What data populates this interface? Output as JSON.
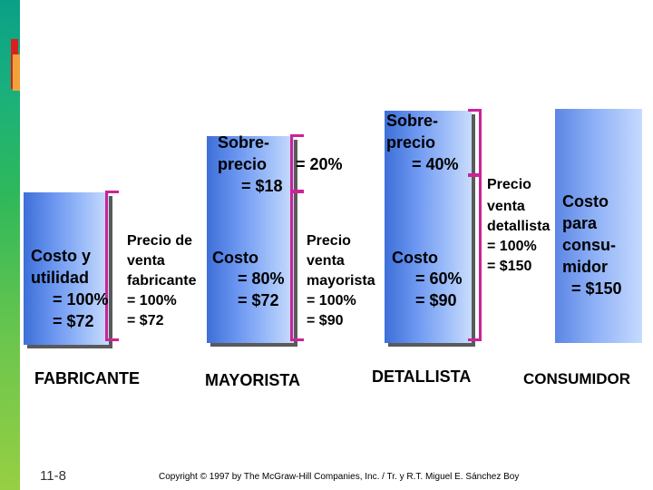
{
  "slide_number": "11-8",
  "copyright": "Copyright © 1997 by The McGraw-Hill Companies, Inc. / Tr. y R.T. Miguel E. Sánchez Boy",
  "fabricante": {
    "label": "FABRICANTE",
    "cost_profit": [
      "Costo y",
      "utilidad",
      "= 100%",
      "= $72"
    ],
    "selling_price": [
      "Precio de",
      "venta",
      "fabricante",
      "= 100%",
      "= $72"
    ]
  },
  "mayorista": {
    "label": "MAYORISTA",
    "markup": [
      "Sobre-",
      "precio",
      "= $18"
    ],
    "markup_pct": "= 20%",
    "cost": [
      "Costo",
      "= 80%",
      "= $72"
    ],
    "selling_price": [
      "Precio",
      "venta",
      "mayorista",
      "= 100%",
      "= $90"
    ]
  },
  "detallista": {
    "label": "DETALLISTA",
    "markup": [
      "Sobre-",
      "precio",
      "= 40%"
    ],
    "cost": [
      "Costo",
      "= 60%",
      "= $90"
    ],
    "selling_price": [
      "Precio",
      "venta",
      "detallista",
      "= 100%",
      "= $150"
    ]
  },
  "consumidor": {
    "label": "CONSUMIDOR",
    "cost": [
      "Costo",
      "para",
      "consu-",
      "midor",
      "= $150"
    ]
  },
  "colors": {
    "box": "#4a7ee0",
    "bracket": "#cc2299",
    "edge": "#19b07d"
  }
}
